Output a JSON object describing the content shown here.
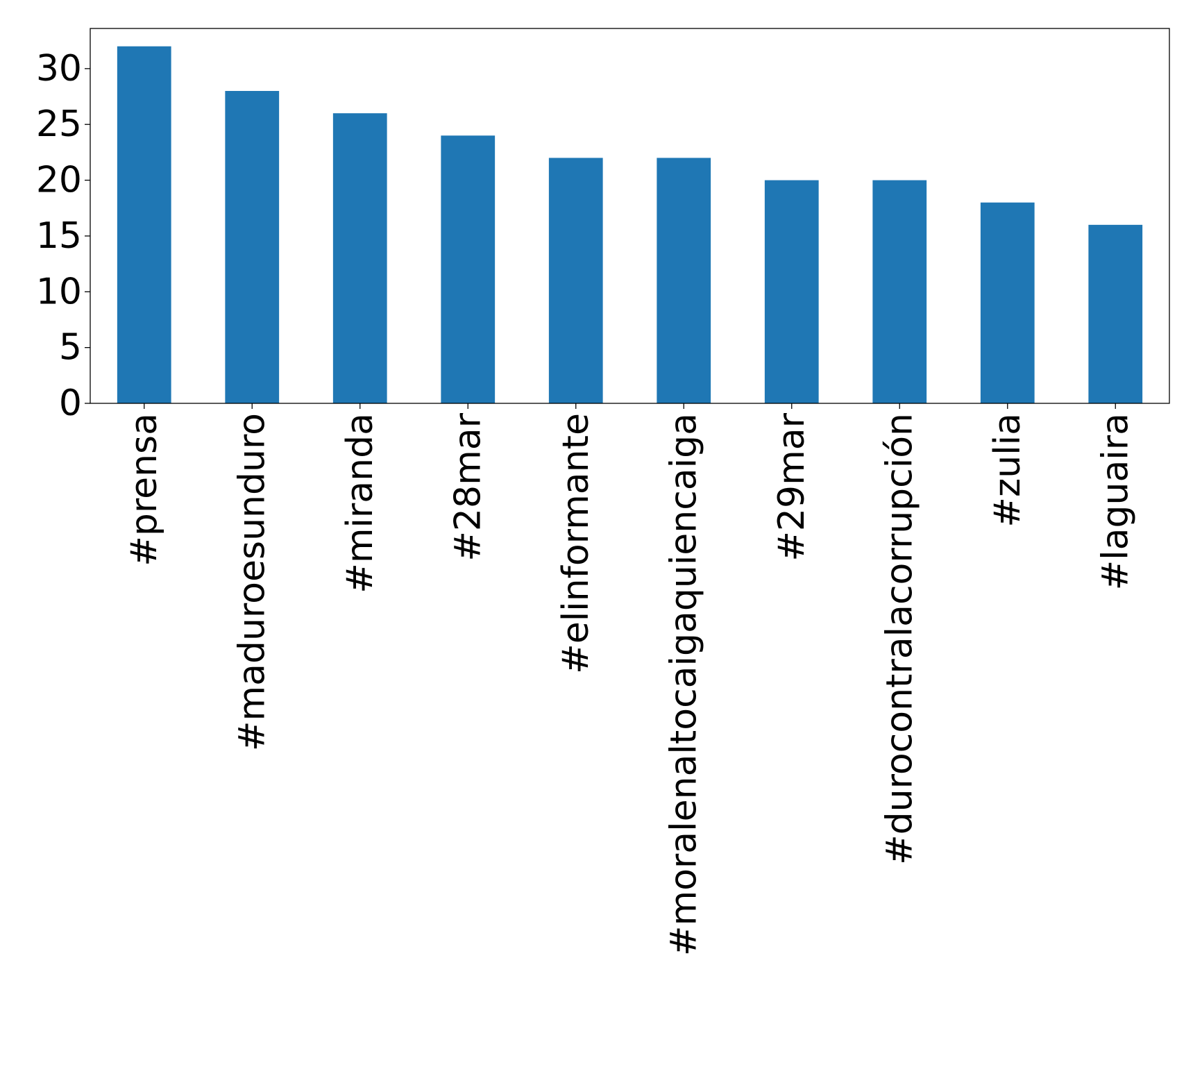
{
  "chart_data": {
    "type": "bar",
    "categories": [
      "#prensa",
      "#maduroesunduro",
      "#miranda",
      "#28mar",
      "#elinformante",
      "#moralenaltocaigaquiencaiga",
      "#29mar",
      "#durocontralacorrupción",
      "#zulia",
      "#laguaira"
    ],
    "values": [
      32,
      28,
      26,
      24,
      22,
      22,
      20,
      20,
      18,
      16
    ],
    "ylim": [
      0,
      33.6
    ],
    "yticks": [
      0,
      5,
      10,
      15,
      20,
      25,
      30
    ],
    "bar_color": "#1f77b4",
    "grid": false,
    "title": "",
    "xlabel": "",
    "ylabel": ""
  }
}
